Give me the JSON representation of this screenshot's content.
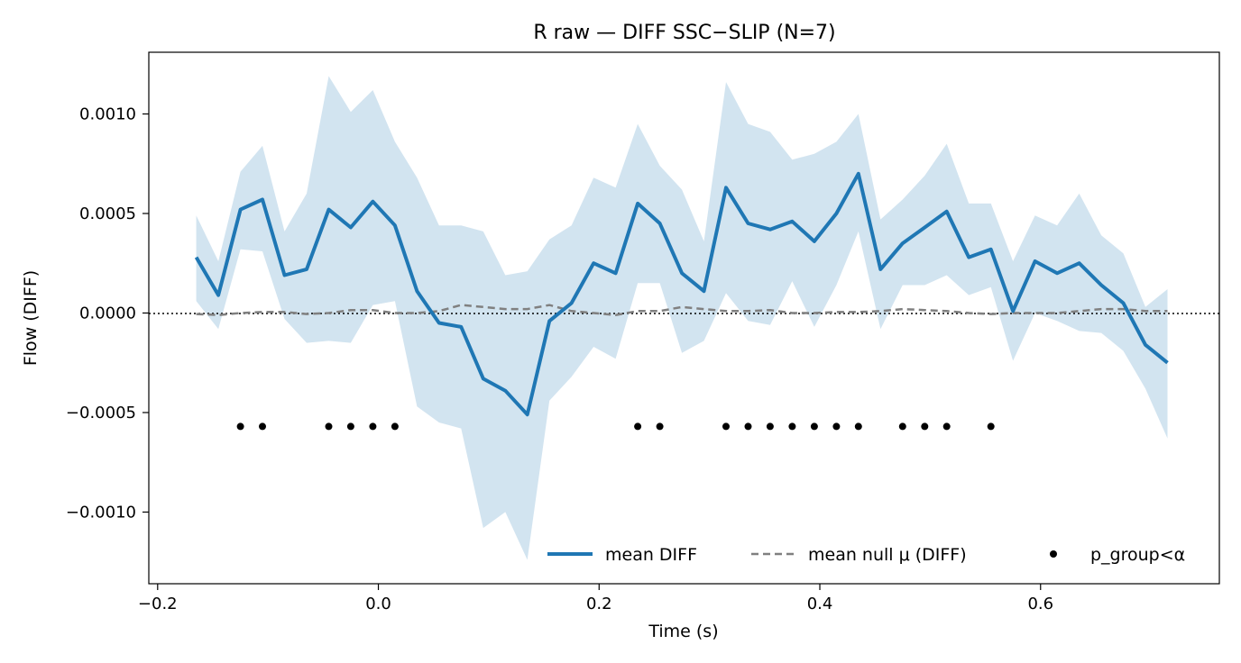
{
  "chart_data": {
    "type": "line",
    "title": "R raw — DIFF SSC−SLIP (N=7)",
    "xlabel": "Time (s)",
    "ylabel": "Flow (DIFF)",
    "xlim": [
      -0.208,
      0.762
    ],
    "ylim": [
      -0.00136,
      0.00131
    ],
    "x_ticks": [
      -0.2,
      0.0,
      0.2,
      0.4,
      0.6
    ],
    "x_tick_labels": [
      "−0.2",
      "0.0",
      "0.2",
      "0.4",
      "0.6"
    ],
    "y_ticks": [
      0.001,
      0.0005,
      0.0,
      -0.0005,
      -0.001
    ],
    "y_tick_labels": [
      "0.0010",
      "0.0005",
      "0.0000",
      "−0.0005",
      "−0.0010"
    ],
    "grid": false,
    "legend_position": "lower-right",
    "zero_line": true,
    "x": [
      -0.165,
      -0.145,
      -0.125,
      -0.105,
      -0.085,
      -0.065,
      -0.045,
      -0.025,
      -0.005,
      0.015,
      0.035,
      0.055,
      0.075,
      0.095,
      0.115,
      0.135,
      0.155,
      0.175,
      0.195,
      0.215,
      0.235,
      0.255,
      0.275,
      0.295,
      0.315,
      0.335,
      0.355,
      0.375,
      0.395,
      0.415,
      0.435,
      0.455,
      0.475,
      0.495,
      0.515,
      0.535,
      0.555,
      0.575,
      0.595,
      0.615,
      0.635,
      0.655,
      0.675,
      0.695,
      0.715
    ],
    "series": [
      {
        "name": "mean DIFF",
        "color": "#1f77b4",
        "style": "solid",
        "values": [
          0.00028,
          9e-05,
          0.00052,
          0.00057,
          0.00019,
          0.00022,
          0.00052,
          0.00043,
          0.00056,
          0.00044,
          0.00011,
          -5e-05,
          -7e-05,
          -0.00033,
          -0.00039,
          -0.00051,
          -4e-05,
          5e-05,
          0.00025,
          0.0002,
          0.00055,
          0.00045,
          0.0002,
          0.00011,
          0.00063,
          0.00045,
          0.00042,
          0.00046,
          0.00036,
          0.0005,
          0.0007,
          0.00022,
          0.00035,
          0.00043,
          0.00051,
          0.00028,
          0.00032,
          1e-05,
          0.00026,
          0.0002,
          0.00025,
          0.00014,
          5e-05,
          -0.00016,
          -0.00025
        ],
        "band_lower": [
          6e-05,
          -8e-05,
          0.00032,
          0.00031,
          -3e-05,
          -0.00015,
          -0.00014,
          -0.00015,
          4e-05,
          6e-05,
          -0.00047,
          -0.00055,
          -0.00058,
          -0.00108,
          -0.001,
          -0.00124,
          -0.00044,
          -0.00032,
          -0.00017,
          -0.00023,
          0.00015,
          0.00015,
          -0.0002,
          -0.00014,
          0.0001,
          -4e-05,
          -6e-05,
          0.00016,
          -7e-05,
          0.00014,
          0.00041,
          -8e-05,
          0.00014,
          0.00014,
          0.00019,
          9e-05,
          0.00013,
          -0.00024,
          0.0,
          -4e-05,
          -9e-05,
          -0.0001,
          -0.00019,
          -0.00038,
          -0.00063
        ],
        "band_upper": [
          0.00049,
          0.00026,
          0.00071,
          0.00084,
          0.00041,
          0.0006,
          0.00119,
          0.00101,
          0.00112,
          0.00086,
          0.00068,
          0.00044,
          0.00044,
          0.00041,
          0.00019,
          0.00021,
          0.00037,
          0.00044,
          0.00068,
          0.00063,
          0.00095,
          0.00074,
          0.00062,
          0.00036,
          0.00116,
          0.00095,
          0.00091,
          0.00077,
          0.0008,
          0.00086,
          0.001,
          0.00047,
          0.00057,
          0.00069,
          0.00085,
          0.00055,
          0.00055,
          0.00026,
          0.00049,
          0.00044,
          0.0006,
          0.00039,
          0.0003,
          3e-05,
          0.00012
        ]
      },
      {
        "name": "mean null μ (DIFF)",
        "color": "#808080",
        "style": "dashed",
        "values": [
          -5e-06,
          -1e-05,
          0.0,
          5e-06,
          5e-06,
          -5e-06,
          0.0,
          1.5e-05,
          1.5e-05,
          0.0,
          0.0,
          1e-05,
          4e-05,
          3e-05,
          2e-05,
          2e-05,
          4e-05,
          1e-05,
          0.0,
          -1e-05,
          1e-05,
          1e-05,
          3e-05,
          2e-05,
          1e-05,
          1e-05,
          1.5e-05,
          0.0,
          0.0,
          5e-06,
          5e-06,
          1e-05,
          2e-05,
          1.5e-05,
          1e-05,
          0.0,
          -5e-06,
          0.0,
          0.0,
          0.0,
          1e-05,
          2e-05,
          2e-05,
          1e-05,
          1e-05
        ]
      },
      {
        "name": "p_group<α",
        "color": "#000000",
        "style": "markers",
        "x": [
          -0.125,
          -0.105,
          -0.045,
          -0.025,
          -0.005,
          0.015,
          0.235,
          0.255,
          0.315,
          0.335,
          0.355,
          0.375,
          0.395,
          0.415,
          0.435,
          0.475,
          0.495,
          0.515,
          0.555
        ],
        "y": -0.00057
      }
    ]
  }
}
